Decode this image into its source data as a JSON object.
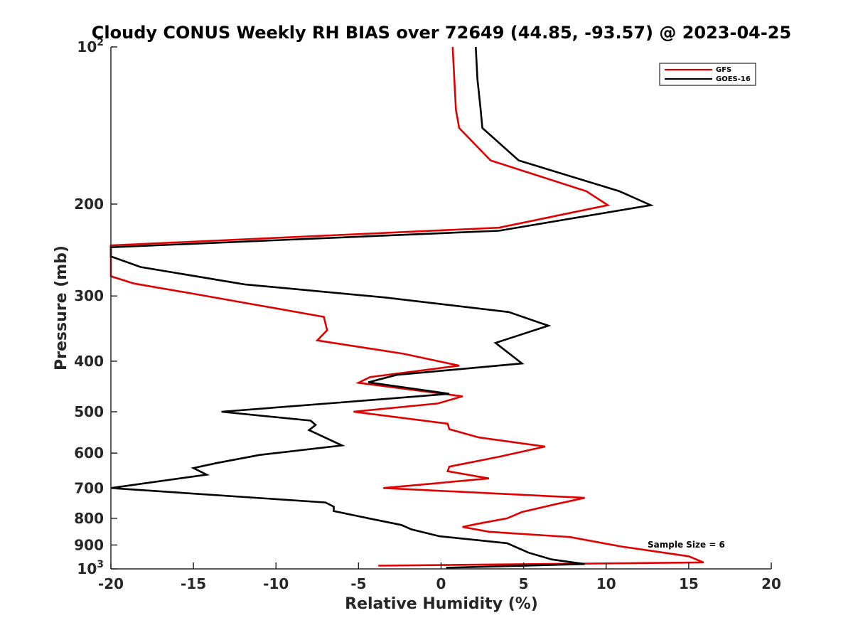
{
  "chart_data": {
    "type": "line",
    "title": "Cloudy CONUS Weekly RH BIAS over 72649 (44.85, -93.57) @ 2023-04-25",
    "xlabel": "Relative Humidity (%)",
    "ylabel": "Pressure (mb)",
    "xlim": [
      -20,
      20
    ],
    "ylim": [
      100,
      1000
    ],
    "y_scale": "log",
    "y_reversed": true,
    "grid": false,
    "legend_position": "top-right",
    "x_ticks": [
      "-20",
      "-15",
      "-10",
      "-5",
      "0",
      "5",
      "10",
      "15",
      "20"
    ],
    "y_ticks": [
      {
        "value": 100,
        "base": "10",
        "exp": "2"
      },
      {
        "value": 200,
        "label": "200"
      },
      {
        "value": 300,
        "label": "300"
      },
      {
        "value": 400,
        "label": "400"
      },
      {
        "value": 500,
        "label": "500"
      },
      {
        "value": 600,
        "label": "600"
      },
      {
        "value": 700,
        "label": "700"
      },
      {
        "value": 800,
        "label": "800"
      },
      {
        "value": 900,
        "label": "900"
      },
      {
        "value": 1000,
        "base": "10",
        "exp": "3"
      }
    ],
    "annotation": "Sample Size = 6",
    "series": [
      {
        "name": "GFS",
        "color": "#e00000",
        "points": [
          [
            0.7,
            100
          ],
          [
            0.8,
            115
          ],
          [
            0.9,
            132
          ],
          [
            1.1,
            143
          ],
          [
            3.0,
            165
          ],
          [
            8.8,
            189
          ],
          [
            10.1,
            201
          ],
          [
            3.5,
            222
          ],
          [
            -20.0,
            240
          ],
          [
            -20.0,
            275
          ],
          [
            -18.6,
            284
          ],
          [
            -14.5,
            299
          ],
          [
            -7.1,
            329
          ],
          [
            -6.9,
            349
          ],
          [
            -7.5,
            365
          ],
          [
            -2.3,
            387
          ],
          [
            1.1,
            408
          ],
          [
            -4.3,
            429
          ],
          [
            -5.0,
            440
          ],
          [
            1.3,
            467
          ],
          [
            -0.2,
            482
          ],
          [
            -5.3,
            500
          ],
          [
            0.4,
            527
          ],
          [
            0.5,
            540
          ],
          [
            2.3,
            560
          ],
          [
            6.3,
            583
          ],
          [
            3.5,
            610
          ],
          [
            0.5,
            637
          ],
          [
            0.4,
            650
          ],
          [
            2.9,
            671
          ],
          [
            -3.5,
            700
          ],
          [
            8.7,
            731
          ],
          [
            7.0,
            751
          ],
          [
            4.9,
            778
          ],
          [
            4.0,
            800
          ],
          [
            2.2,
            820
          ],
          [
            1.3,
            831
          ],
          [
            2.9,
            849
          ],
          [
            7.8,
            869
          ],
          [
            10.9,
            906
          ],
          [
            15.0,
            946
          ],
          [
            15.9,
            972
          ],
          [
            -3.8,
            986
          ]
        ]
      },
      {
        "name": "GOES-16",
        "color": "#000000",
        "points": [
          [
            2.1,
            100
          ],
          [
            2.2,
            115
          ],
          [
            2.4,
            132
          ],
          [
            2.5,
            143
          ],
          [
            4.7,
            165
          ],
          [
            10.8,
            189
          ],
          [
            12.7,
            201
          ],
          [
            3.5,
            225
          ],
          [
            -20.0,
            242
          ],
          [
            -20.0,
            252
          ],
          [
            -18.2,
            264
          ],
          [
            -11.9,
            285
          ],
          [
            -3.4,
            302
          ],
          [
            4.1,
            322
          ],
          [
            6.5,
            342
          ],
          [
            3.3,
            369
          ],
          [
            4.9,
            404
          ],
          [
            -2.7,
            425
          ],
          [
            -4.4,
            439
          ],
          [
            0.5,
            462
          ],
          [
            -6.1,
            480
          ],
          [
            -13.3,
            500
          ],
          [
            -7.9,
            520
          ],
          [
            -7.6,
            530
          ],
          [
            -8.0,
            542
          ],
          [
            -6.0,
            580
          ],
          [
            -11.0,
            605
          ],
          [
            -13.6,
            627
          ],
          [
            -15.0,
            641
          ],
          [
            -14.2,
            660
          ],
          [
            -20.0,
            700
          ],
          [
            -7.0,
            746
          ],
          [
            -6.5,
            760
          ],
          [
            -6.5,
            775
          ],
          [
            -4.3,
            801
          ],
          [
            -2.4,
            824
          ],
          [
            -1.8,
            840
          ],
          [
            -0.1,
            866
          ],
          [
            4.0,
            893
          ],
          [
            5.3,
            931
          ],
          [
            6.7,
            959
          ],
          [
            8.7,
            979
          ],
          [
            0.3,
            995
          ]
        ]
      }
    ]
  }
}
